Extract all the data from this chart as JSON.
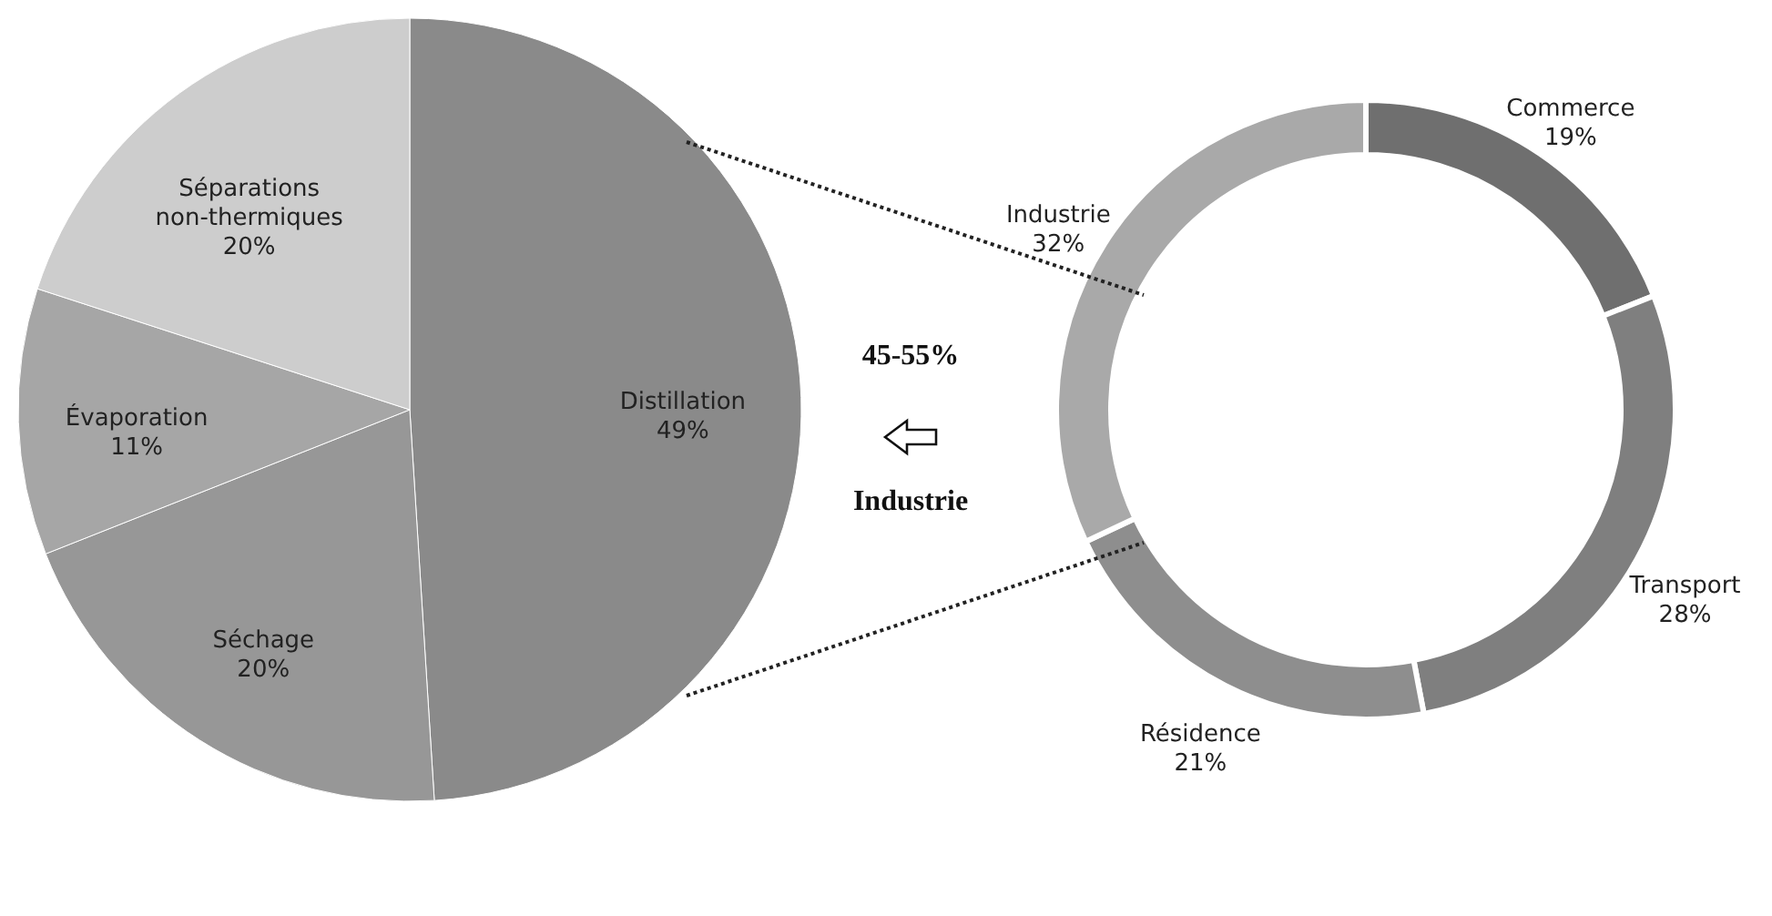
{
  "chart_data": [
    {
      "type": "pie",
      "categories": [
        "Distillation",
        "Séchage",
        "Évaporation",
        "Séparations non-thermiques"
      ],
      "values": [
        49,
        20,
        11,
        20
      ],
      "value_labels": [
        "49%",
        "20%",
        "11%",
        "20%"
      ],
      "colors": [
        "#8a8a8a",
        "#979797",
        "#a6a6a6",
        "#cdcdcd"
      ]
    },
    {
      "type": "donut",
      "categories": [
        "Commerce",
        "Transport",
        "Résidence",
        "Industrie"
      ],
      "values": [
        19,
        28,
        21,
        32
      ],
      "value_labels": [
        "19%",
        "28%",
        "21%",
        "32%"
      ],
      "colors": [
        "#6f6f6f",
        "#7f7f7f",
        "#8e8e8e",
        "#a9a9a9"
      ],
      "annotations": [
        "45-55%",
        "Industrie"
      ]
    }
  ]
}
